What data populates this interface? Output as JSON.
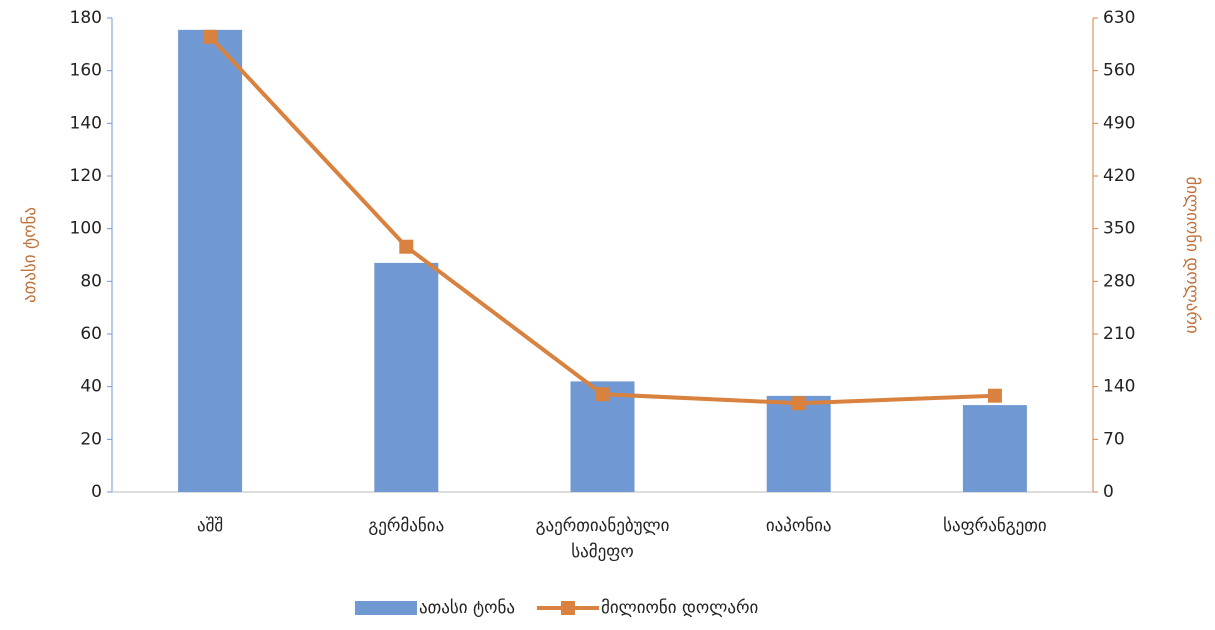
{
  "chart_data": {
    "type": "bar_line",
    "categories": [
      "აშშ",
      "გერმანია",
      "გაერთიანებული სამეფო",
      "იაპონია",
      "საფრანგეთი"
    ],
    "series": [
      {
        "name": "ათასი ტონა",
        "type": "bar",
        "color": "#7099d3",
        "axis": "y",
        "values": [
          175.5,
          87,
          42,
          36.5,
          33
        ]
      },
      {
        "name": "მილიონი დოლარი",
        "type": "line",
        "color": "#d9823f",
        "axis": "y2",
        "values": [
          605,
          326,
          130,
          118,
          128
        ]
      }
    ],
    "y_label": "ათასი ტონა",
    "y2_label": "მილიონი დოლარი",
    "ylim": [
      0,
      180
    ],
    "yticks": [
      0,
      20,
      40,
      60,
      80,
      100,
      120,
      140,
      160,
      180
    ],
    "y2lim": [
      0,
      630
    ],
    "y2ticks": [
      0,
      70,
      140,
      210,
      280,
      350,
      420,
      490,
      560,
      630
    ],
    "y_axis_color": "#7099d3",
    "y2_axis_color": "#d9823f",
    "legend": "bottom"
  }
}
